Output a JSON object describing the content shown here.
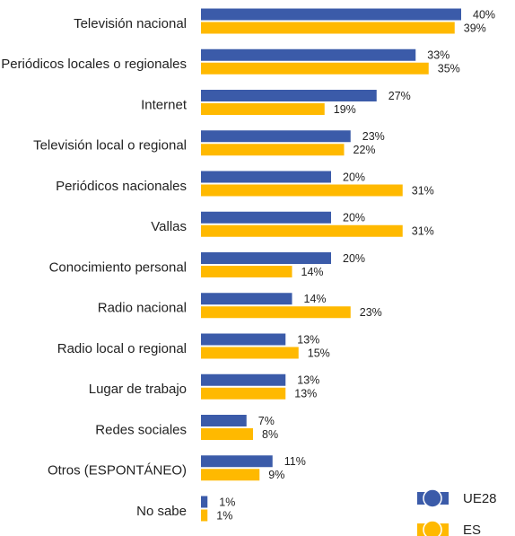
{
  "chart_data": {
    "type": "hbar",
    "categories": [
      "Televisión nacional",
      "Periódicos locales o regionales",
      "Internet",
      "Televisión local o regional",
      "Periódicos nacionales",
      "Vallas",
      "Conocimiento personal",
      "Radio nacional",
      "Radio local o regional",
      "Lugar de trabajo",
      "Redes sociales",
      "Otros (ESPONTÁNEO)",
      "No sabe"
    ],
    "series": [
      {
        "name": "UE28",
        "color": "#3b5ba9",
        "values": [
          40,
          33,
          27,
          23,
          20,
          20,
          20,
          14,
          13,
          13,
          7,
          11,
          1
        ],
        "value_labels": [
          "40%",
          "33%",
          "27%",
          "23%",
          "20%",
          "20%",
          "20%",
          "14%",
          "13%",
          "13%",
          "7%",
          "11%",
          "1%"
        ]
      },
      {
        "name": "ES",
        "color": "#ffb900",
        "values": [
          39,
          35,
          19,
          22,
          31,
          31,
          14,
          23,
          15,
          13,
          8,
          9,
          1
        ],
        "value_labels": [
          "39%",
          "35%",
          "19%",
          "22%",
          "31%",
          "31%",
          "14%",
          "23%",
          "15%",
          "13%",
          "8%",
          "9%",
          "1%"
        ]
      }
    ],
    "legend": "bottom-right"
  }
}
